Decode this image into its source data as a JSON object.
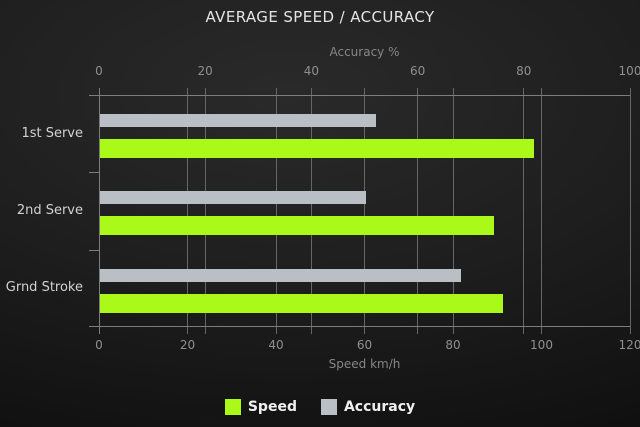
{
  "title": "AVERAGE SPEED / ACCURACY",
  "chart_data": {
    "type": "bar",
    "orientation": "horizontal",
    "title": "AVERAGE SPEED / ACCURACY",
    "categories": [
      "1st Serve",
      "2nd Serve",
      "Grnd Stroke"
    ],
    "series": [
      {
        "name": "Speed",
        "axis": "bottom",
        "color": "#aaf918",
        "values": [
          98,
          89,
          91
        ]
      },
      {
        "name": "Accuracy",
        "axis": "top",
        "color": "#b9bfc4",
        "values": [
          52,
          50,
          68
        ]
      }
    ],
    "axes": {
      "top": {
        "label": "Accuracy %",
        "min": 0,
        "max": 100,
        "ticks": [
          0,
          20,
          40,
          60,
          80,
          100
        ]
      },
      "bottom": {
        "label": "Speed km/h",
        "min": 0,
        "max": 120,
        "ticks": [
          0,
          20,
          40,
          60,
          80,
          100,
          120
        ]
      }
    },
    "grid": true,
    "legend_position": "bottom"
  },
  "colors": {
    "speed_bar": "#aaf918",
    "accuracy_bar": "#b9bfc4",
    "gridline": "#666666",
    "axis_line": "#7d7d7d",
    "title_text": "#e4e4e4",
    "tick_text": "#8f8f8f",
    "category_text": "#d2d2d2",
    "legend_text": "#f0f0f0",
    "background_center": "#2a2a2a",
    "background_edge": "#0c0c0c"
  }
}
